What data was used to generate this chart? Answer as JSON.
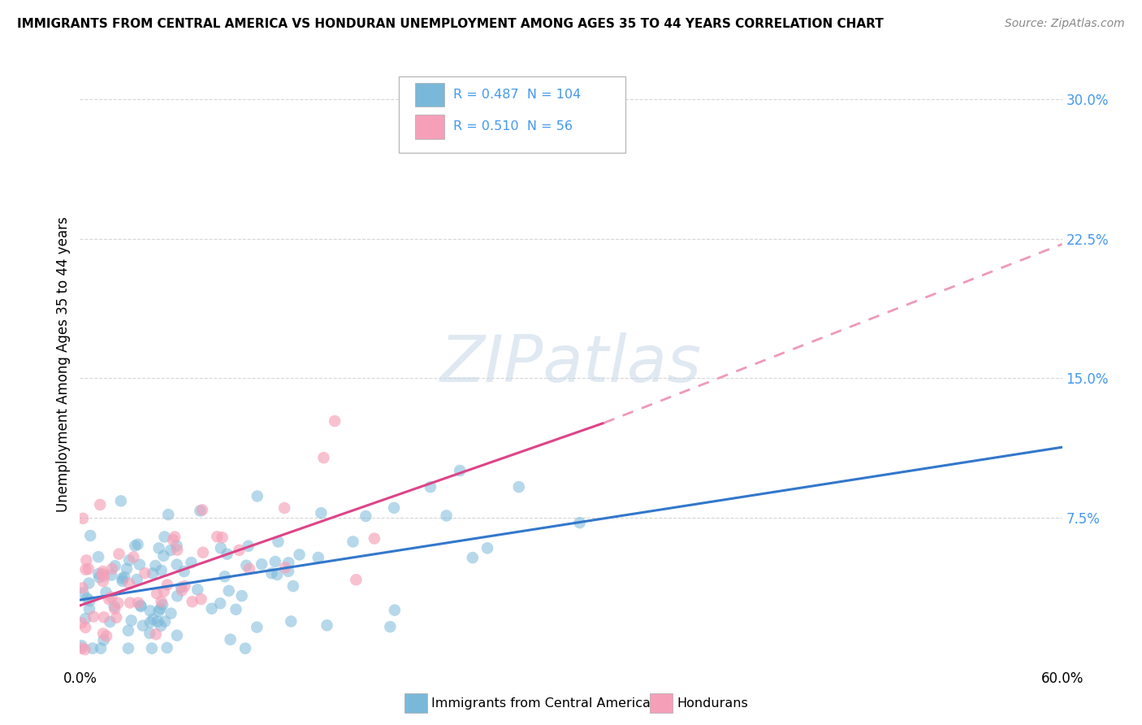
{
  "title": "IMMIGRANTS FROM CENTRAL AMERICA VS HONDURAN UNEMPLOYMENT AMONG AGES 35 TO 44 YEARS CORRELATION CHART",
  "source": "Source: ZipAtlas.com",
  "ylabel": "Unemployment Among Ages 35 to 44 years",
  "xlim": [
    0.0,
    0.6
  ],
  "ylim": [
    -0.005,
    0.32
  ],
  "xtick_positions": [
    0.0,
    0.6
  ],
  "xtick_labels": [
    "0.0%",
    "60.0%"
  ],
  "ytick_labels": [
    "7.5%",
    "15.0%",
    "22.5%",
    "30.0%"
  ],
  "ytick_positions": [
    0.075,
    0.15,
    0.225,
    0.3
  ],
  "grid_color": "#cccccc",
  "background_color": "#ffffff",
  "blue_color": "#7ab8d9",
  "pink_color": "#f5a0b8",
  "blue_line_color": "#3377cc",
  "pink_line_color": "#dd4488",
  "pink_dash_color": "#ee99bb",
  "R_blue": 0.487,
  "N_blue": 104,
  "R_pink": 0.51,
  "N_pink": 56,
  "watermark": "ZIPatlas",
  "legend_label_blue": "Immigrants from Central America",
  "legend_label_pink": "Hondurans",
  "blue_line_start_x": 0.0,
  "blue_line_start_y": 0.031,
  "blue_line_end_x": 0.6,
  "blue_line_end_y": 0.113,
  "pink_line_start_x": 0.0,
  "pink_line_start_y": 0.028,
  "pink_line_solid_end_x": 0.32,
  "pink_line_solid_end_y": 0.126,
  "pink_line_dash_end_x": 0.6,
  "pink_line_dash_end_y": 0.222
}
